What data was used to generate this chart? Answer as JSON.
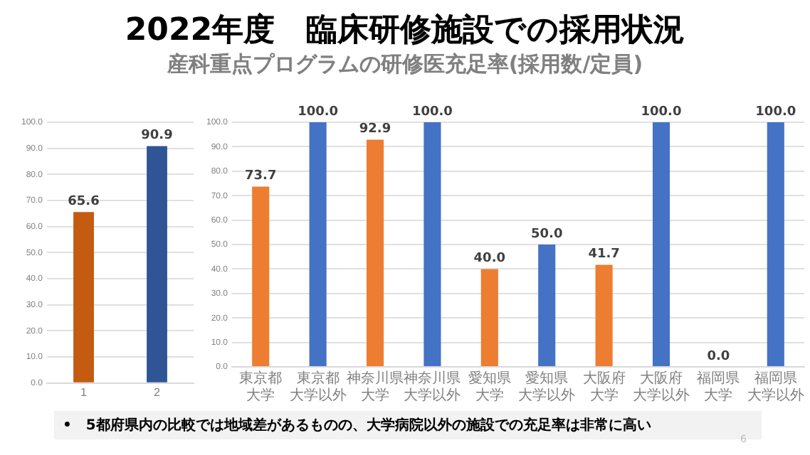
{
  "chart_data": [
    {
      "type": "bar",
      "title": "2022年度　臨床研修施設での採用状況",
      "categories": [
        "1",
        "2"
      ],
      "values": [
        65.6,
        90.9
      ],
      "colors": [
        "#c55a11",
        "#2f5597"
      ],
      "value_labels": [
        "65.6",
        "90.9"
      ],
      "ylim": [
        0,
        100
      ],
      "yticks": [
        {
          "value": 0,
          "label": "0.0"
        },
        {
          "value": 10,
          "label": "10.0"
        },
        {
          "value": 20,
          "label": "20.0"
        },
        {
          "value": 30,
          "label": "30.0"
        },
        {
          "value": 40,
          "label": "40.0"
        },
        {
          "value": 50,
          "label": "50.0"
        },
        {
          "value": 60,
          "label": "60.0"
        },
        {
          "value": 70,
          "label": "70.0"
        },
        {
          "value": 80,
          "label": "80.0"
        },
        {
          "value": 90,
          "label": "90.0"
        },
        {
          "value": 100,
          "label": "100.0"
        }
      ],
      "grid": "y",
      "legend": false
    },
    {
      "type": "bar",
      "subtitle": "産科重点プログラムの研修医充足率(採用数/定員)",
      "categories": [
        "東京都大学",
        "東京都大学以外",
        "神奈川県大学",
        "神奈川県大学以外",
        "愛知県大学",
        "愛知県大学以外",
        "大阪府大学",
        "大阪府大学以外",
        "福岡県大学",
        "福岡県大学以外"
      ],
      "values": [
        73.7,
        100,
        92.9,
        100,
        40,
        50,
        41.7,
        100,
        0,
        100
      ],
      "colors": [
        "#ed7d31",
        "#4472c4",
        "#ed7d31",
        "#4472c4",
        "#ed7d31",
        "#4472c4",
        "#ed7d31",
        "#4472c4",
        "#ed7d31",
        "#4472c4"
      ],
      "value_labels": [
        "73.7",
        "100.0",
        "92.9",
        "100.0",
        "40.0",
        "50.0",
        "41.7",
        "100.0",
        "0.0",
        "100.0"
      ],
      "ylim": [
        0,
        100
      ],
      "yticks": [
        {
          "value": 0,
          "label": "0.0"
        },
        {
          "value": 10,
          "label": "10.0"
        },
        {
          "value": 20,
          "label": "20.0"
        },
        {
          "value": 30,
          "label": "30.0"
        },
        {
          "value": 40,
          "label": "40.0"
        },
        {
          "value": 50,
          "label": "50.0"
        },
        {
          "value": 60,
          "label": "60.0"
        },
        {
          "value": 70,
          "label": "70.0"
        },
        {
          "value": 80,
          "label": "80.0"
        },
        {
          "value": 90,
          "label": "90.0"
        },
        {
          "value": 100,
          "label": "100.0"
        }
      ],
      "grid": "y",
      "legend": false,
      "annotations": [
        "•　5都府県内の比較では地域差があるものの、大学病院以外の施設での充足率は非常に高い",
        "6"
      ]
    }
  ]
}
